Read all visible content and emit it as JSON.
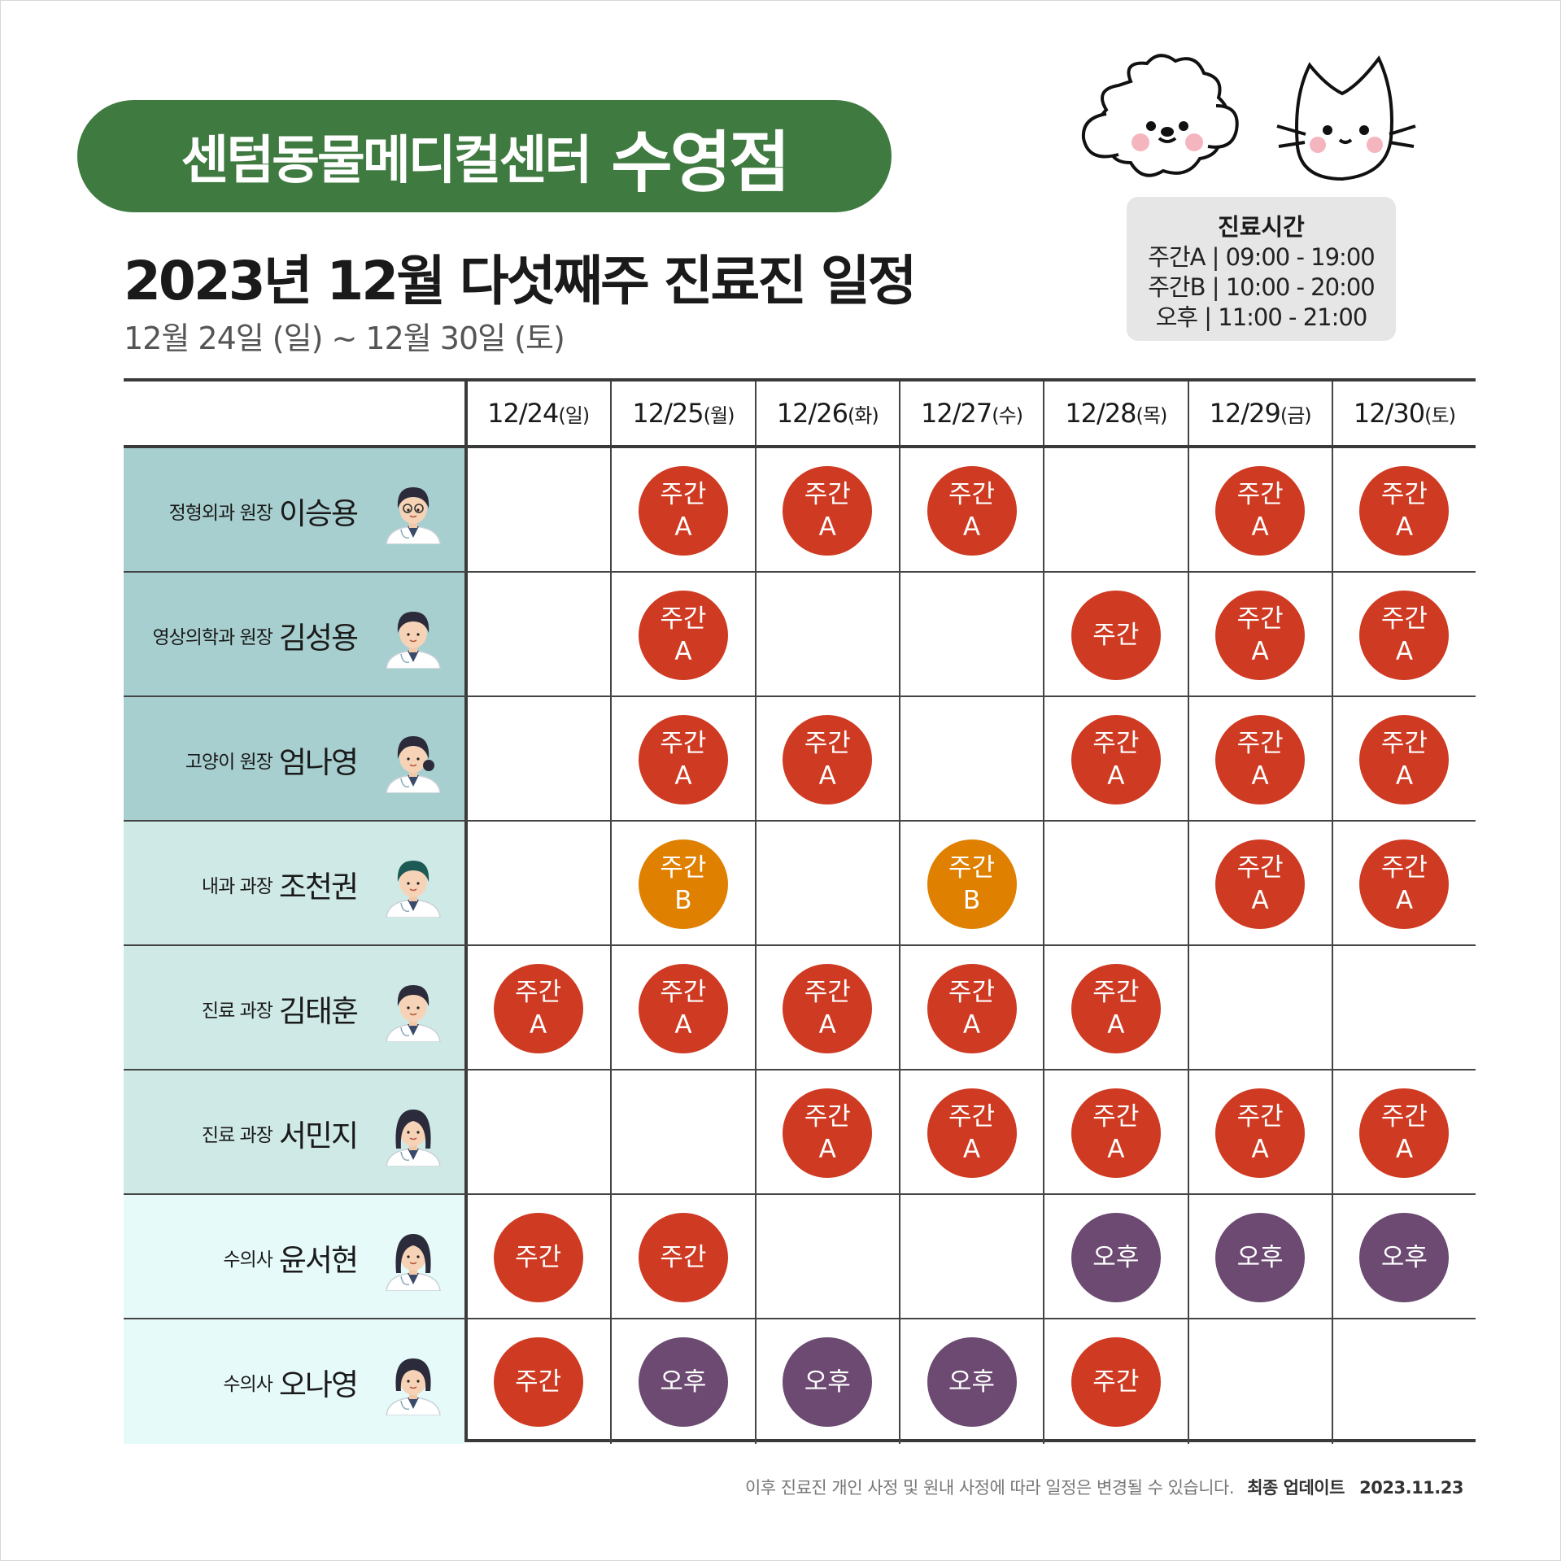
{
  "banner": {
    "clinic": "센텀동물메디컬센터",
    "branch": "수영점"
  },
  "title": "2023년 12월 다섯째주 진료진 일정",
  "subtitle": "12월 24일 (일) ~ 12월 30일 (토)",
  "hours": {
    "title": "진료시간",
    "lines": [
      "주간A | 09:00 - 19:00",
      "주간B | 10:00 - 20:00",
      "오후 | 11:00 - 21:00"
    ]
  },
  "days": [
    {
      "date": "12/24",
      "dow": "(일)"
    },
    {
      "date": "12/25",
      "dow": "(월)"
    },
    {
      "date": "12/26",
      "dow": "(화)"
    },
    {
      "date": "12/27",
      "dow": "(수)"
    },
    {
      "date": "12/28",
      "dow": "(목)"
    },
    {
      "date": "12/29",
      "dow": "(금)"
    },
    {
      "date": "12/30",
      "dow": "(토)"
    }
  ],
  "colors": {
    "day_shift": "#cf3a22",
    "day_b_shift": "#df8000",
    "evening_shift": "#6c4a72",
    "row_group_1": "#a8cfcf",
    "row_group_2": "#cfeae6",
    "row_group_3": "#e6fafa"
  },
  "doctors": [
    {
      "role": "정형외과 원장",
      "name": "이승용",
      "group": 1,
      "avatar": "doctor-glasses",
      "schedule": [
        null,
        {
          "t": "주간",
          "s": "A"
        },
        {
          "t": "주간",
          "s": "A"
        },
        {
          "t": "주간",
          "s": "A"
        },
        null,
        {
          "t": "주간",
          "s": "A"
        },
        {
          "t": "주간",
          "s": "A"
        }
      ]
    },
    {
      "role": "영상의학과 원장",
      "name": "김성용",
      "group": 1,
      "avatar": "doctor-male",
      "schedule": [
        null,
        {
          "t": "주간",
          "s": "A"
        },
        null,
        null,
        {
          "t": "주간",
          "s": ""
        },
        {
          "t": "주간",
          "s": "A"
        },
        {
          "t": "주간",
          "s": "A"
        }
      ]
    },
    {
      "role": "고양이 원장",
      "name": "엄나영",
      "group": 1,
      "avatar": "doctor-female-bun",
      "schedule": [
        null,
        {
          "t": "주간",
          "s": "A"
        },
        {
          "t": "주간",
          "s": "A"
        },
        null,
        {
          "t": "주간",
          "s": "A"
        },
        {
          "t": "주간",
          "s": "A"
        },
        {
          "t": "주간",
          "s": "A"
        }
      ]
    },
    {
      "role": "내과 과장",
      "name": "조천권",
      "group": 2,
      "avatar": "doctor-male-teal",
      "schedule": [
        null,
        {
          "t": "주간",
          "s": "B"
        },
        null,
        {
          "t": "주간",
          "s": "B"
        },
        null,
        {
          "t": "주간",
          "s": "A"
        },
        {
          "t": "주간",
          "s": "A"
        }
      ]
    },
    {
      "role": "진료 과장",
      "name": "김태훈",
      "group": 2,
      "avatar": "doctor-male",
      "schedule": [
        {
          "t": "주간",
          "s": "A"
        },
        {
          "t": "주간",
          "s": "A"
        },
        {
          "t": "주간",
          "s": "A"
        },
        {
          "t": "주간",
          "s": "A"
        },
        {
          "t": "주간",
          "s": "A"
        },
        null,
        null
      ]
    },
    {
      "role": "진료 과장",
      "name": "서민지",
      "group": 2,
      "avatar": "doctor-female-long",
      "schedule": [
        null,
        null,
        {
          "t": "주간",
          "s": "A"
        },
        {
          "t": "주간",
          "s": "A"
        },
        {
          "t": "주간",
          "s": "A"
        },
        {
          "t": "주간",
          "s": "A"
        },
        {
          "t": "주간",
          "s": "A"
        }
      ]
    },
    {
      "role": "수의사",
      "name": "윤서현",
      "group": 3,
      "avatar": "doctor-female-long",
      "schedule": [
        {
          "t": "주간",
          "s": ""
        },
        {
          "t": "주간",
          "s": ""
        },
        null,
        null,
        {
          "t": "오후",
          "s": ""
        },
        {
          "t": "오후",
          "s": ""
        },
        {
          "t": "오후",
          "s": ""
        }
      ]
    },
    {
      "role": "수의사",
      "name": "오나영",
      "group": 3,
      "avatar": "doctor-female-short",
      "schedule": [
        {
          "t": "주간",
          "s": ""
        },
        {
          "t": "오후",
          "s": ""
        },
        {
          "t": "오후",
          "s": ""
        },
        {
          "t": "오후",
          "s": ""
        },
        {
          "t": "주간",
          "s": ""
        },
        null,
        null
      ]
    }
  ],
  "footer": {
    "notice": "이후 진료진 개인 사정 및 원내 사정에 따라 일정은 변경될 수 있습니다.",
    "updated_label": "최종 업데이트",
    "updated_date": "2023.11.23"
  }
}
